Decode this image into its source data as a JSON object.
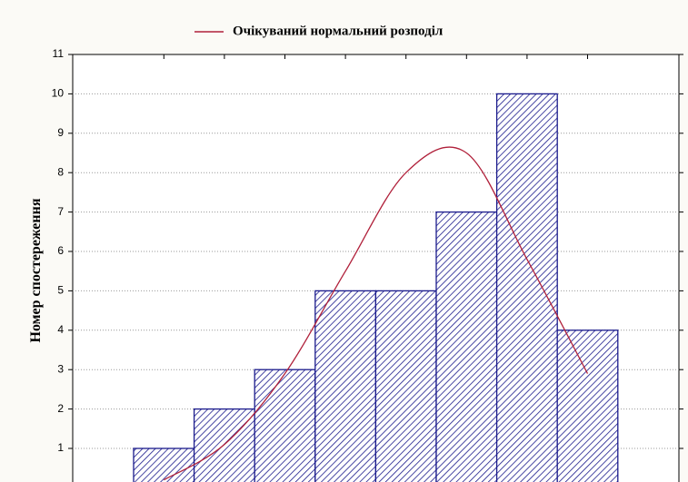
{
  "chart_data": {
    "type": "histogram",
    "y_label": "Номер спостереження",
    "categories": [
      null,
      null,
      null,
      null,
      null,
      null,
      null,
      null
    ],
    "values": [
      1,
      2,
      3,
      5,
      5,
      7,
      10,
      4
    ],
    "color": "#1a1a8c",
    "ylim": [
      0,
      11
    ],
    "yticks": [
      1,
      2,
      3,
      4,
      5,
      6,
      7,
      8,
      9,
      10,
      11
    ],
    "grid": true,
    "legend": "top",
    "curve": {
      "name": "Очікуваний нормальний розподіл",
      "color": "#b0203a",
      "values": [
        0.2,
        1.1,
        2.9,
        5.5,
        8.0,
        8.5,
        5.8,
        2.9
      ]
    }
  }
}
